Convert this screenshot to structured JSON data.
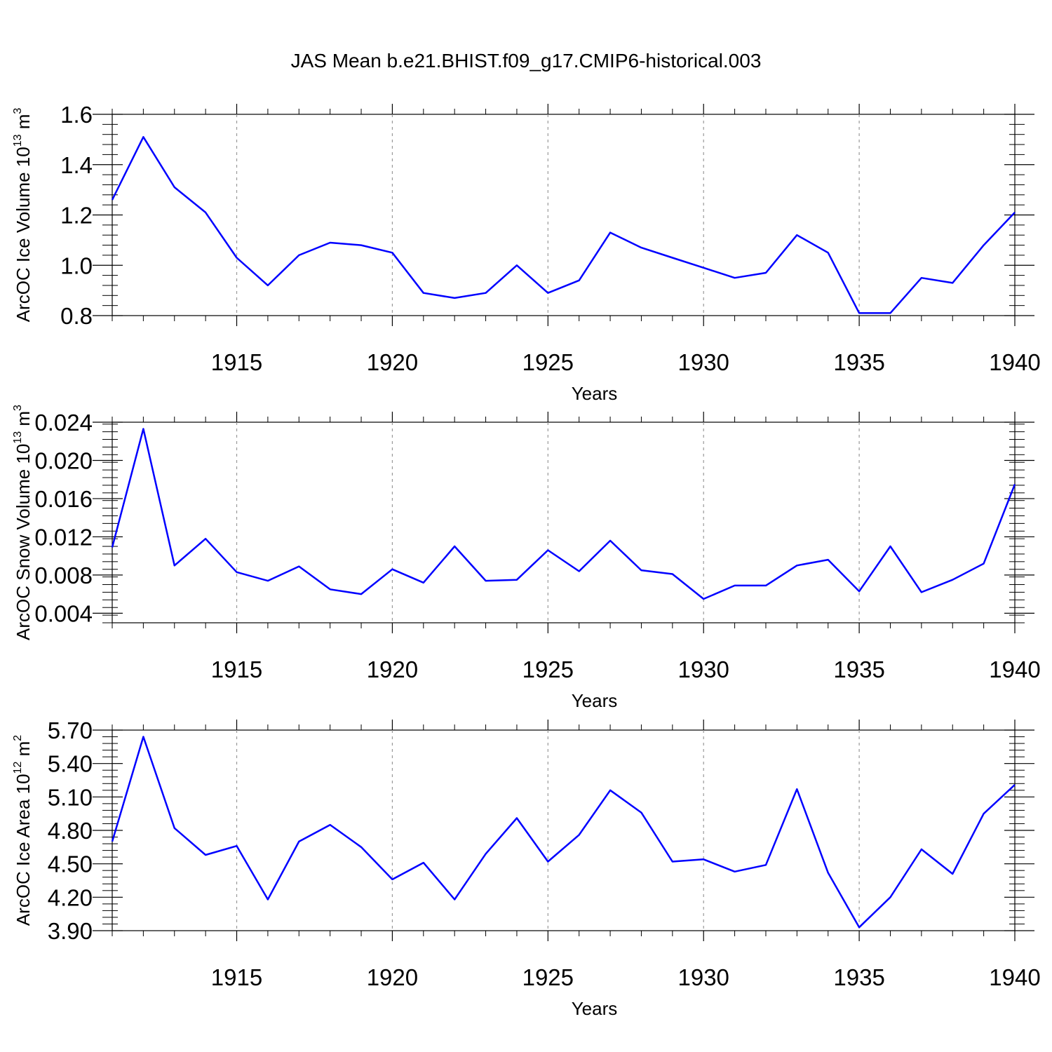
{
  "title": "JAS Mean b.e21.BHIST.f09_g17.CMIP6-historical.003",
  "colors": {
    "line": "#0000ff",
    "axis": "#000000",
    "grid": "#999999"
  },
  "chart_data": [
    {
      "type": "line",
      "name": "ice-volume",
      "ylabel": {
        "main": "ArcOC Ice Volume 10",
        "exp": "13",
        "unit": " m",
        "unit_exp": "3"
      },
      "xlabel": "Years",
      "xlim": [
        1911,
        1940
      ],
      "ylim": [
        0.8,
        1.6
      ],
      "x_ticks": [
        "1915",
        "1920",
        "1925",
        "1930",
        "1935",
        "1940"
      ],
      "y_ticks": [
        "0.8",
        "1.0",
        "1.2",
        "1.4",
        "1.6"
      ],
      "x": [
        1911,
        1912,
        1913,
        1914,
        1915,
        1916,
        1917,
        1918,
        1919,
        1920,
        1921,
        1922,
        1923,
        1924,
        1925,
        1926,
        1927,
        1928,
        1929,
        1930,
        1931,
        1932,
        1933,
        1934,
        1935,
        1936,
        1937,
        1938,
        1939,
        1940
      ],
      "values": [
        1.26,
        1.51,
        1.31,
        1.21,
        1.03,
        0.92,
        1.04,
        1.09,
        1.08,
        1.05,
        0.89,
        0.87,
        0.89,
        1.0,
        0.89,
        0.94,
        1.13,
        1.07,
        1.03,
        0.99,
        0.95,
        0.97,
        1.12,
        1.05,
        0.81,
        0.81,
        0.95,
        0.93,
        1.08,
        1.21
      ]
    },
    {
      "type": "line",
      "name": "snow-volume",
      "ylabel": {
        "main": "ArcOC Snow Volume 10",
        "exp": "13",
        "unit": " m",
        "unit_exp": "3"
      },
      "xlabel": "Years",
      "xlim": [
        1911,
        1940
      ],
      "ylim": [
        0.003,
        0.024
      ],
      "x_ticks": [
        "1915",
        "1920",
        "1925",
        "1930",
        "1935",
        "1940"
      ],
      "y_ticks": [
        "0.004",
        "0.008",
        "0.012",
        "0.016",
        "0.020",
        "0.024"
      ],
      "x": [
        1911,
        1912,
        1913,
        1914,
        1915,
        1916,
        1917,
        1918,
        1919,
        1920,
        1921,
        1922,
        1923,
        1924,
        1925,
        1926,
        1927,
        1928,
        1929,
        1930,
        1931,
        1932,
        1933,
        1934,
        1935,
        1936,
        1937,
        1938,
        1939,
        1940
      ],
      "values": [
        0.0109,
        0.0233,
        0.009,
        0.0118,
        0.0083,
        0.0074,
        0.0089,
        0.0065,
        0.006,
        0.0086,
        0.0072,
        0.011,
        0.0074,
        0.0075,
        0.0106,
        0.0084,
        0.0116,
        0.0085,
        0.0081,
        0.0055,
        0.0069,
        0.0069,
        0.009,
        0.0096,
        0.0063,
        0.011,
        0.0062,
        0.0075,
        0.0092,
        0.0175
      ]
    },
    {
      "type": "line",
      "name": "ice-area",
      "ylabel": {
        "main": "ArcOC Ice Area 10",
        "exp": "12",
        "unit": " m",
        "unit_exp": "2"
      },
      "xlabel": "Years",
      "xlim": [
        1911,
        1940
      ],
      "ylim": [
        3.9,
        5.7
      ],
      "x_ticks": [
        "1915",
        "1920",
        "1925",
        "1930",
        "1935",
        "1940"
      ],
      "y_ticks": [
        "3.90",
        "4.20",
        "4.50",
        "4.80",
        "5.10",
        "5.40",
        "5.70"
      ],
      "x": [
        1911,
        1912,
        1913,
        1914,
        1915,
        1916,
        1917,
        1918,
        1919,
        1920,
        1921,
        1922,
        1923,
        1924,
        1925,
        1926,
        1927,
        1928,
        1929,
        1930,
        1931,
        1932,
        1933,
        1934,
        1935,
        1936,
        1937,
        1938,
        1939,
        1940
      ],
      "values": [
        4.7,
        5.64,
        4.82,
        4.58,
        4.66,
        4.18,
        4.7,
        4.85,
        4.65,
        4.36,
        4.51,
        4.18,
        4.59,
        4.91,
        4.52,
        4.76,
        5.16,
        4.96,
        4.52,
        4.54,
        4.43,
        4.49,
        5.17,
        4.42,
        3.93,
        4.2,
        4.63,
        4.41,
        4.95,
        5.21
      ]
    }
  ]
}
